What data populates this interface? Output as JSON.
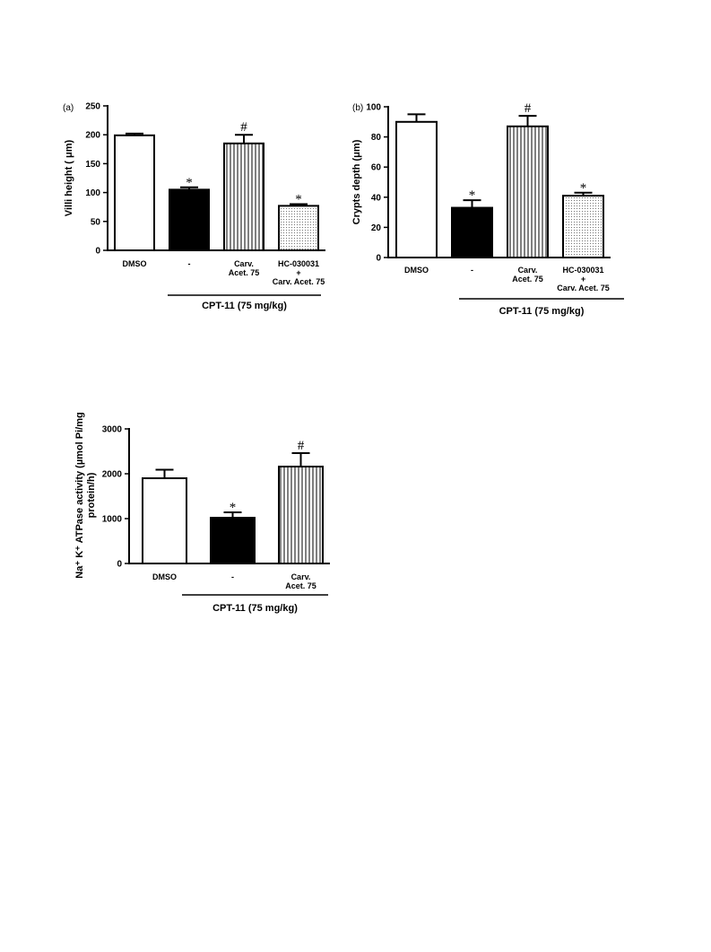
{
  "chart_data": [
    {
      "type": "bar",
      "panel_label": "(a)",
      "ylabel": "Villi height ( μm)",
      "ylim": [
        0,
        250
      ],
      "yticks": [
        "0",
        "50",
        "100",
        "150",
        "200",
        "250"
      ],
      "categories": [
        [
          "DMSO"
        ],
        [
          "-"
        ],
        [
          "Carv.",
          "Acet. 75"
        ],
        [
          "HC-030031",
          "+",
          "Carv. Acet. 75"
        ]
      ],
      "values": [
        199,
        105,
        185,
        77
      ],
      "errors": [
        3,
        4,
        15,
        3
      ],
      "fills": [
        "white",
        "black",
        "vlines",
        "dots"
      ],
      "annotations": [
        "",
        "*",
        "#",
        "*"
      ],
      "group_label": "CPT-11 (75 mg/kg)"
    },
    {
      "type": "bar",
      "panel_label": "(b)",
      "ylabel": "Crypts depth (μm)",
      "ylim": [
        0,
        100
      ],
      "yticks": [
        "0",
        "20",
        "40",
        "60",
        "80",
        "100"
      ],
      "categories": [
        [
          "DMSO"
        ],
        [
          "-"
        ],
        [
          "Carv.",
          "Acet. 75"
        ],
        [
          "HC-030031",
          "+",
          "Carv. Acet. 75"
        ]
      ],
      "values": [
        90,
        33,
        87,
        41
      ],
      "errors": [
        5,
        5,
        7,
        2
      ],
      "fills": [
        "white",
        "black",
        "vlines",
        "dots"
      ],
      "annotations": [
        "",
        "*",
        "#",
        "*"
      ],
      "group_label": "CPT-11 (75 mg/kg)"
    },
    {
      "type": "bar",
      "ylabel_line1": "Na⁺ K⁺ ATPase activity (µmol  Pi/mg",
      "ylabel_line2": "protein/h)",
      "ylim": [
        0,
        3000
      ],
      "yticks": [
        "0",
        "1000",
        "2000",
        "3000"
      ],
      "categories": [
        [
          "DMSO"
        ],
        [
          "-"
        ],
        [
          "Carv.",
          "Acet. 75"
        ]
      ],
      "values": [
        1900,
        1020,
        2160
      ],
      "errors": [
        190,
        120,
        300
      ],
      "fills": [
        "white",
        "black",
        "vlines"
      ],
      "annotations": [
        "",
        "*",
        "#"
      ],
      "group_label": "CPT-11 (75 mg/kg)"
    }
  ]
}
